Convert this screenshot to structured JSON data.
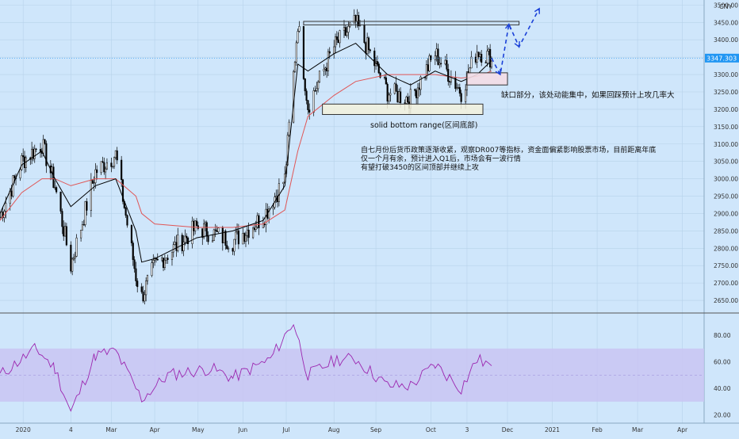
{
  "colors": {
    "background": "#cfe6fb",
    "up_candle": "#ffffff",
    "down_candle": "#000000",
    "ma_fast": "#000000",
    "ma_slow": "#e05656",
    "rsi_line": "#9c27b0",
    "rsi_band": "#c9c4f2",
    "projection": "#1a40d8",
    "price_tag": "#2196f3",
    "gap_box": "#f3dde6",
    "range_box": "#f3f1dc"
  },
  "price_pane": {
    "currency": "CNY",
    "current_price": "3347.303",
    "y_ticks": [
      "3500.00",
      "3450.00",
      "3400.00",
      "3350.00",
      "3300.00",
      "3250.00",
      "3200.00",
      "3150.00",
      "3100.00",
      "3050.00",
      "3000.00",
      "2950.00",
      "2900.00",
      "2850.00",
      "2800.00",
      "2750.00",
      "2700.00",
      "2650.00"
    ]
  },
  "rsi_pane": {
    "y_ticks": [
      "80.00",
      "60.00",
      "40.00",
      "20.00"
    ],
    "band": [
      30,
      70
    ]
  },
  "x_ticks": [
    "2020",
    "4",
    "Mar",
    "Apr",
    "May",
    "Jun",
    "Jul",
    "Aug",
    "Sep",
    "Oct",
    "3",
    "Dec",
    "2021",
    "Feb",
    "Mar",
    "Apr"
  ],
  "annotations": {
    "gap_note": "缺口部分，该处动能集中，如果回踩预计上攻几率大",
    "bottom_label": "solid bottom range(区间底部)",
    "analysis": [
      "自七月份后货币政策逐渐收紧，观察DR007等指标，资金面偏紧影响股票市场，目前距离年底",
      "仅一个月有余，预计进入Q1后，市场会有一波行情",
      "有望打破3450的区间顶部并继续上攻"
    ]
  },
  "chart_data": {
    "type": "candlestick",
    "price_axis": {
      "ylim": [
        2625,
        3510
      ],
      "unit": "CNY"
    },
    "x_period_labels": [
      "2020",
      "4",
      "Mar",
      "Apr",
      "May",
      "Jun",
      "Jul",
      "Aug",
      "Sep",
      "Oct",
      "3",
      "Dec",
      "2021",
      "Feb",
      "Mar",
      "Apr"
    ],
    "close_path": [
      [
        "2019-12-16",
        2890
      ],
      [
        "2019-12-31",
        3050
      ],
      [
        "2020-01-14",
        3100
      ],
      [
        "2020-01-23",
        2980
      ],
      [
        "2020-02-03",
        2750
      ],
      [
        "2020-02-20",
        3020
      ],
      [
        "2020-03-05",
        3070
      ],
      [
        "2020-03-19",
        2720
      ],
      [
        "2020-03-23",
        2660
      ],
      [
        "2020-04-01",
        2750
      ],
      [
        "2020-04-30",
        2860
      ],
      [
        "2020-05-25",
        2820
      ],
      [
        "2020-06-15",
        2890
      ],
      [
        "2020-06-30",
        3000
      ],
      [
        "2020-07-09",
        3450
      ],
      [
        "2020-07-16",
        3210
      ],
      [
        "2020-08-03",
        3380
      ],
      [
        "2020-08-18",
        3450
      ],
      [
        "2020-09-09",
        3250
      ],
      [
        "2020-09-25",
        3230
      ],
      [
        "2020-10-12",
        3360
      ],
      [
        "2020-10-30",
        3250
      ],
      [
        "2020-11-10",
        3370
      ],
      [
        "2020-11-20",
        3347
      ]
    ],
    "ma_fast_values": [
      2900,
      3040,
      3080,
      3000,
      2920,
      2980,
      3000,
      2850,
      2760,
      2770,
      2830,
      2850,
      2880,
      2980,
      3330,
      3310,
      3360,
      3390,
      3300,
      3270,
      3310,
      3280,
      3300,
      3340
    ],
    "ma_slow_values": [
      2880,
      2960,
      3000,
      3000,
      2980,
      3000,
      3000,
      2950,
      2900,
      2870,
      2860,
      2860,
      2870,
      2910,
      3080,
      3180,
      3240,
      3280,
      3300,
      3300,
      3300,
      3290,
      3295,
      3310
    ],
    "rsi_values": [
      [
        "2019-12-16",
        50
      ],
      [
        "2020-01-10",
        70
      ],
      [
        "2020-01-23",
        55
      ],
      [
        "2020-02-03",
        22
      ],
      [
        "2020-02-20",
        65
      ],
      [
        "2020-03-05",
        68
      ],
      [
        "2020-03-23",
        32
      ],
      [
        "2020-04-10",
        50
      ],
      [
        "2020-05-10",
        55
      ],
      [
        "2020-05-25",
        48
      ],
      [
        "2020-06-20",
        62
      ],
      [
        "2020-07-06",
        90
      ],
      [
        "2020-07-16",
        50
      ],
      [
        "2020-08-05",
        62
      ],
      [
        "2020-08-18",
        62
      ],
      [
        "2020-09-09",
        42
      ],
      [
        "2020-09-25",
        42
      ],
      [
        "2020-10-12",
        58
      ],
      [
        "2020-10-30",
        40
      ],
      [
        "2020-11-10",
        62
      ],
      [
        "2020-11-20",
        57
      ]
    ],
    "rsi_axis": {
      "ylim": [
        15,
        95
      ]
    },
    "range_top": 3450,
    "range_bottom": [
      3185,
      3215
    ],
    "gap_zone": [
      3270,
      3305
    ],
    "projection_path": [
      [
        "2020-11-20",
        3347
      ],
      [
        "2020-11-26",
        3300
      ],
      [
        "2020-12-02",
        3445
      ],
      [
        "2020-12-09",
        3380
      ],
      [
        "2020-12-23",
        3490
      ]
    ]
  }
}
